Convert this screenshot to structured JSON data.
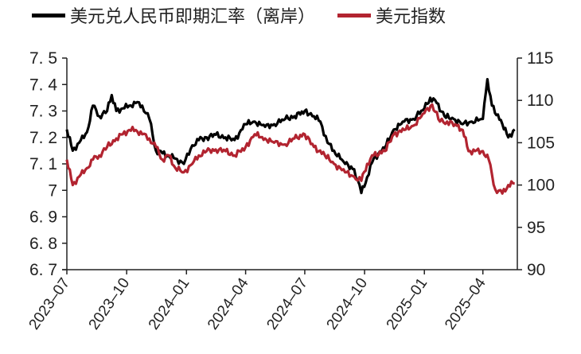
{
  "legend": {
    "series1": "美元兑人民币即期汇率（离岸）",
    "series2": "美元指数"
  },
  "colors": {
    "series1": "#000000",
    "series2": "#b22430",
    "axis": "#222222"
  },
  "chart_data": {
    "type": "line",
    "title": "",
    "xlabel": "",
    "ylabel_left": "",
    "ylabel_right": "",
    "x_ticks": [
      "2023-07",
      "2023-10",
      "2024-01",
      "2024-04",
      "2024-07",
      "2024-10",
      "2025-01",
      "2025-04"
    ],
    "y_left": {
      "ticks": [
        "6.7",
        "6.8",
        "6.9",
        "7",
        "7.1",
        "7.2",
        "7.3",
        "7.4",
        "7.5"
      ],
      "lim": [
        6.7,
        7.5
      ]
    },
    "y_right": {
      "ticks": [
        "90",
        "95",
        "100",
        "105",
        "110",
        "115"
      ],
      "lim": [
        90,
        115
      ]
    },
    "grid": false,
    "legend_position": "top",
    "series": [
      {
        "name": "美元兑人民币即期汇率（离岸）",
        "axis": "left",
        "x": [
          "2023-07-01",
          "2023-07-10",
          "2023-07-20",
          "2023-08-01",
          "2023-08-10",
          "2023-08-20",
          "2023-09-01",
          "2023-09-08",
          "2023-09-15",
          "2023-09-25",
          "2023-10-05",
          "2023-10-15",
          "2023-10-25",
          "2023-11-05",
          "2023-11-15",
          "2023-11-25",
          "2023-12-05",
          "2023-12-15",
          "2023-12-28",
          "2024-01-10",
          "2024-01-20",
          "2024-02-01",
          "2024-02-15",
          "2024-03-01",
          "2024-03-15",
          "2024-04-01",
          "2024-04-15",
          "2024-05-01",
          "2024-05-15",
          "2024-06-01",
          "2024-06-15",
          "2024-07-01",
          "2024-07-15",
          "2024-07-25",
          "2024-08-05",
          "2024-08-15",
          "2024-09-01",
          "2024-09-15",
          "2024-09-26",
          "2024-10-05",
          "2024-10-15",
          "2024-11-01",
          "2024-11-15",
          "2024-12-01",
          "2024-12-15",
          "2025-01-01",
          "2025-01-10",
          "2025-01-20",
          "2025-02-01",
          "2025-02-15",
          "2025-03-01",
          "2025-03-15",
          "2025-04-01",
          "2025-04-08",
          "2025-04-15",
          "2025-05-01",
          "2025-05-10",
          "2025-05-20"
        ],
        "values": [
          7.23,
          7.15,
          7.18,
          7.22,
          7.32,
          7.28,
          7.3,
          7.36,
          7.3,
          7.31,
          7.32,
          7.33,
          7.32,
          7.27,
          7.15,
          7.14,
          7.13,
          7.12,
          7.1,
          7.17,
          7.19,
          7.2,
          7.21,
          7.2,
          7.19,
          7.25,
          7.26,
          7.24,
          7.25,
          7.27,
          7.28,
          7.3,
          7.28,
          7.26,
          7.18,
          7.15,
          7.1,
          7.08,
          6.99,
          7.05,
          7.12,
          7.16,
          7.23,
          7.26,
          7.27,
          7.31,
          7.35,
          7.33,
          7.28,
          7.27,
          7.25,
          7.26,
          7.27,
          7.42,
          7.32,
          7.25,
          7.2,
          7.23
        ]
      },
      {
        "name": "美元指数",
        "axis": "right",
        "x": [
          "2023-07-01",
          "2023-07-10",
          "2023-07-20",
          "2023-08-01",
          "2023-08-10",
          "2023-08-20",
          "2023-09-01",
          "2023-09-15",
          "2023-09-25",
          "2023-10-05",
          "2023-10-15",
          "2023-10-25",
          "2023-11-05",
          "2023-11-15",
          "2023-11-25",
          "2023-12-05",
          "2023-12-15",
          "2023-12-28",
          "2024-01-10",
          "2024-01-20",
          "2024-02-01",
          "2024-02-15",
          "2024-03-01",
          "2024-03-15",
          "2024-04-01",
          "2024-04-15",
          "2024-05-01",
          "2024-05-15",
          "2024-06-01",
          "2024-06-15",
          "2024-07-01",
          "2024-07-15",
          "2024-08-01",
          "2024-08-15",
          "2024-09-01",
          "2024-09-15",
          "2024-09-26",
          "2024-10-05",
          "2024-10-15",
          "2024-11-01",
          "2024-11-15",
          "2024-12-01",
          "2024-12-15",
          "2025-01-01",
          "2025-01-13",
          "2025-01-25",
          "2025-02-05",
          "2025-02-20",
          "2025-03-01",
          "2025-03-10",
          "2025-03-20",
          "2025-04-01",
          "2025-04-10",
          "2025-04-20",
          "2025-05-01",
          "2025-05-10",
          "2025-05-20"
        ],
        "values": [
          103.0,
          100.0,
          101.0,
          102.0,
          103.0,
          103.5,
          104.5,
          105.5,
          106.0,
          106.5,
          106.5,
          106.0,
          105.5,
          104.5,
          103.0,
          103.5,
          102.0,
          101.5,
          102.5,
          103.5,
          104.0,
          104.2,
          104.0,
          103.5,
          104.5,
          106.0,
          105.5,
          105.0,
          104.8,
          105.5,
          106.0,
          104.5,
          103.5,
          102.5,
          101.5,
          101.0,
          100.5,
          102.5,
          103.5,
          104.0,
          106.0,
          106.5,
          107.0,
          108.5,
          109.5,
          107.5,
          107.5,
          107.0,
          106.5,
          104.0,
          104.0,
          104.0,
          103.0,
          99.5,
          99.0,
          100.0,
          100.2
        ]
      }
    ]
  }
}
